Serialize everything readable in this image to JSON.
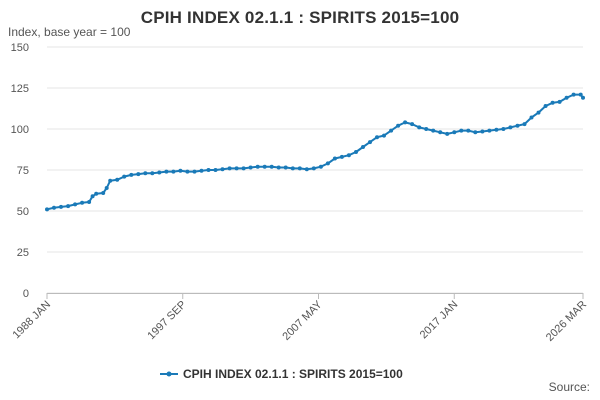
{
  "chart_data": {
    "type": "line",
    "title": "CPIH INDEX 02.1.1 : SPIRITS 2015=100",
    "ylabel": "Index, base year = 100",
    "xlabel": "",
    "ylim": [
      0,
      150
    ],
    "yticks": [
      0,
      25,
      50,
      75,
      100,
      125,
      150
    ],
    "xlim": [
      "1988-01",
      "2026-03"
    ],
    "xtick_labels": [
      "1988 JAN",
      "1997 SEP",
      "2007 MAY",
      "2017 JAN",
      "2026 MAR"
    ],
    "xtick_dates": [
      "1988-01",
      "1997-09",
      "2007-05",
      "2017-01",
      "2026-03"
    ],
    "grid": "horizontal",
    "legend_position": "bottom",
    "series_color": "#1a7ab8",
    "series": [
      {
        "name": "CPIH INDEX 02.1.1 : SPIRITS 2015=100",
        "points": [
          [
            "1988-01",
            51
          ],
          [
            "1988-07",
            52
          ],
          [
            "1989-01",
            52.5
          ],
          [
            "1989-07",
            53
          ],
          [
            "1990-01",
            54
          ],
          [
            "1990-07",
            55
          ],
          [
            "1991-01",
            55.5
          ],
          [
            "1991-04",
            59
          ],
          [
            "1991-07",
            60.5
          ],
          [
            "1992-01",
            61
          ],
          [
            "1992-04",
            64
          ],
          [
            "1992-07",
            68.5
          ],
          [
            "1993-01",
            69
          ],
          [
            "1993-07",
            71
          ],
          [
            "1994-01",
            72
          ],
          [
            "1994-07",
            72.5
          ],
          [
            "1995-01",
            73
          ],
          [
            "1995-07",
            73
          ],
          [
            "1996-01",
            73.5
          ],
          [
            "1996-07",
            74
          ],
          [
            "1997-01",
            74
          ],
          [
            "1997-07",
            74.5
          ],
          [
            "1998-01",
            74
          ],
          [
            "1998-07",
            74
          ],
          [
            "1999-01",
            74.5
          ],
          [
            "1999-07",
            75
          ],
          [
            "2000-01",
            75
          ],
          [
            "2000-07",
            75.5
          ],
          [
            "2001-01",
            76
          ],
          [
            "2001-07",
            76
          ],
          [
            "2002-01",
            76
          ],
          [
            "2002-07",
            76.5
          ],
          [
            "2003-01",
            77
          ],
          [
            "2003-07",
            77
          ],
          [
            "2004-01",
            77
          ],
          [
            "2004-07",
            76.5
          ],
          [
            "2005-01",
            76.5
          ],
          [
            "2005-07",
            76
          ],
          [
            "2006-01",
            76
          ],
          [
            "2006-07",
            75.5
          ],
          [
            "2007-01",
            76
          ],
          [
            "2007-07",
            77
          ],
          [
            "2008-01",
            79
          ],
          [
            "2008-07",
            82
          ],
          [
            "2009-01",
            83
          ],
          [
            "2009-07",
            84
          ],
          [
            "2010-01",
            86
          ],
          [
            "2010-07",
            89
          ],
          [
            "2011-01",
            92
          ],
          [
            "2011-07",
            95
          ],
          [
            "2012-01",
            96
          ],
          [
            "2012-07",
            99
          ],
          [
            "2013-01",
            102
          ],
          [
            "2013-07",
            104
          ],
          [
            "2014-01",
            103
          ],
          [
            "2014-07",
            101
          ],
          [
            "2015-01",
            100
          ],
          [
            "2015-07",
            99
          ],
          [
            "2016-01",
            98
          ],
          [
            "2016-07",
            97
          ],
          [
            "2017-01",
            98
          ],
          [
            "2017-07",
            99
          ],
          [
            "2018-01",
            99
          ],
          [
            "2018-07",
            98
          ],
          [
            "2019-01",
            98.5
          ],
          [
            "2019-07",
            99
          ],
          [
            "2020-01",
            99.5
          ],
          [
            "2020-07",
            100
          ],
          [
            "2021-01",
            101
          ],
          [
            "2021-07",
            102
          ],
          [
            "2022-01",
            103
          ],
          [
            "2022-07",
            107
          ],
          [
            "2023-01",
            110
          ],
          [
            "2023-07",
            114
          ],
          [
            "2024-01",
            116
          ],
          [
            "2024-07",
            116.5
          ],
          [
            "2025-01",
            119
          ],
          [
            "2025-07",
            121
          ],
          [
            "2026-01",
            121
          ],
          [
            "2026-03",
            119
          ]
        ]
      }
    ],
    "source_label": "Source:"
  }
}
